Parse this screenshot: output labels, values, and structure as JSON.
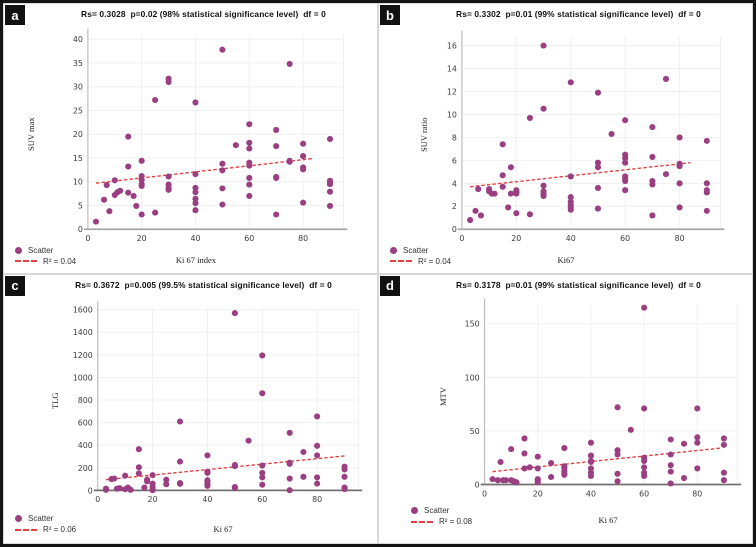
{
  "figure": {
    "point_color": "#9a3f82",
    "trend_color": "#e24141",
    "grid_color": "#f0f0f0",
    "yaxis_color": "#bdbdbd",
    "badge_bg": "#111111",
    "badge_text_color": "#ffffff",
    "border_color": "#141414"
  },
  "chart_data": [
    {
      "type": "scatter",
      "panel": "a",
      "title": "Rs= 0.3028  p=0.02 (98% statistical significance level)  df = 0",
      "xlabel": "Ki 67 index",
      "ylabel": "SUV max",
      "legend": {
        "scatter": "Scatter",
        "r2": "R² = 0.04"
      },
      "xlim": [
        0,
        95
      ],
      "ylim": [
        0,
        41
      ],
      "xticks": [
        0,
        20,
        40,
        60,
        80
      ],
      "yticks": [
        0,
        5,
        10,
        15,
        20,
        25,
        30,
        35,
        40
      ],
      "grid": true,
      "legend_position": "bottom-left",
      "trend": {
        "x1": 3,
        "y1": 9.7,
        "x2": 84,
        "y2": 14.9
      },
      "points": [
        [
          3,
          1.6
        ],
        [
          6,
          6.2
        ],
        [
          7,
          9.3
        ],
        [
          8,
          3.8
        ],
        [
          10,
          7.2
        ],
        [
          10,
          10.3
        ],
        [
          11,
          7.8
        ],
        [
          12,
          8.1
        ],
        [
          15,
          19.5
        ],
        [
          15,
          13.2
        ],
        [
          15,
          7.7
        ],
        [
          17,
          7.0
        ],
        [
          18,
          4.9
        ],
        [
          20,
          14.4
        ],
        [
          20,
          11.2
        ],
        [
          20,
          10.4
        ],
        [
          20,
          9.5
        ],
        [
          20,
          9.1
        ],
        [
          20,
          3.1
        ],
        [
          25,
          27.2
        ],
        [
          25,
          3.5
        ],
        [
          30,
          31.7
        ],
        [
          30,
          31.0
        ],
        [
          30,
          11.1
        ],
        [
          30,
          9.4
        ],
        [
          30,
          8.7
        ],
        [
          30,
          8.3
        ],
        [
          40,
          26.7
        ],
        [
          40,
          11.6
        ],
        [
          40,
          8.7
        ],
        [
          40,
          7.8
        ],
        [
          40,
          6.4
        ],
        [
          40,
          5.5
        ],
        [
          40,
          4.0
        ],
        [
          50,
          37.8
        ],
        [
          50,
          13.8
        ],
        [
          50,
          12.4
        ],
        [
          50,
          8.6
        ],
        [
          50,
          5.2
        ],
        [
          55,
          17.7
        ],
        [
          60,
          22.1
        ],
        [
          60,
          18.2
        ],
        [
          60,
          17.0
        ],
        [
          60,
          14.0
        ],
        [
          60,
          13.4
        ],
        [
          60,
          10.8
        ],
        [
          60,
          9.4
        ],
        [
          60,
          7.0
        ],
        [
          70,
          20.9
        ],
        [
          70,
          17.5
        ],
        [
          70,
          11.0
        ],
        [
          70,
          10.8
        ],
        [
          70,
          3.1
        ],
        [
          75,
          34.8
        ],
        [
          75,
          14.4
        ],
        [
          75,
          14.2
        ],
        [
          80,
          18.0
        ],
        [
          80,
          15.4
        ],
        [
          80,
          13.0
        ],
        [
          80,
          12.6
        ],
        [
          80,
          5.6
        ],
        [
          90,
          19.0
        ],
        [
          90,
          10.2
        ],
        [
          90,
          9.8
        ],
        [
          90,
          9.5
        ],
        [
          90,
          7.9
        ],
        [
          90,
          4.9
        ]
      ]
    },
    {
      "type": "scatter",
      "panel": "b",
      "title": "Rs= 0.3302  p=0.01 (99% statistical significance level)  df = 0",
      "xlabel": "Ki67",
      "ylabel": "SUV ratio",
      "legend": {
        "scatter": "Scatter",
        "r2": "R² = 0.04"
      },
      "xlim": [
        0,
        95
      ],
      "ylim": [
        0,
        16.8
      ],
      "xticks": [
        0,
        20,
        40,
        60,
        80
      ],
      "yticks": [
        0,
        2,
        4,
        6,
        8,
        10,
        12,
        14,
        16
      ],
      "grid": true,
      "legend_position": "bottom-left",
      "trend": {
        "x1": 3,
        "y1": 3.7,
        "x2": 84,
        "y2": 5.8
      },
      "points": [
        [
          3,
          0.8
        ],
        [
          5,
          1.6
        ],
        [
          6,
          3.5
        ],
        [
          7,
          1.2
        ],
        [
          10,
          3.5
        ],
        [
          10,
          3.3
        ],
        [
          11,
          3.1
        ],
        [
          12,
          3.1
        ],
        [
          15,
          7.4
        ],
        [
          15,
          4.7
        ],
        [
          15,
          3.7
        ],
        [
          17,
          1.9
        ],
        [
          18,
          5.4
        ],
        [
          18,
          3.1
        ],
        [
          20,
          3.4
        ],
        [
          20,
          3.3
        ],
        [
          20,
          3.2
        ],
        [
          20,
          3.1
        ],
        [
          20,
          1.4
        ],
        [
          25,
          9.7
        ],
        [
          25,
          1.3
        ],
        [
          30,
          16
        ],
        [
          30,
          10.5
        ],
        [
          30,
          3.8
        ],
        [
          30,
          3.3
        ],
        [
          30,
          3.1
        ],
        [
          30,
          2.9
        ],
        [
          40,
          12.8
        ],
        [
          40,
          4.6
        ],
        [
          40,
          2.8
        ],
        [
          40,
          2.4
        ],
        [
          40,
          2.1
        ],
        [
          40,
          1.9
        ],
        [
          40,
          1.7
        ],
        [
          50,
          11.9
        ],
        [
          50,
          5.8
        ],
        [
          50,
          5.4
        ],
        [
          50,
          3.6
        ],
        [
          50,
          1.8
        ],
        [
          55,
          8.3
        ],
        [
          60,
          9.5
        ],
        [
          60,
          6.5
        ],
        [
          60,
          6.2
        ],
        [
          60,
          5.8
        ],
        [
          60,
          4.6
        ],
        [
          60,
          4.4
        ],
        [
          60,
          4.2
        ],
        [
          60,
          3.4
        ],
        [
          70,
          8.9
        ],
        [
          70,
          6.3
        ],
        [
          70,
          4.2
        ],
        [
          70,
          3.9
        ],
        [
          70,
          1.2
        ],
        [
          75,
          13.1
        ],
        [
          75,
          4.8
        ],
        [
          80,
          8
        ],
        [
          80,
          5.7
        ],
        [
          80,
          5.5
        ],
        [
          80,
          4
        ],
        [
          80,
          1.9
        ],
        [
          90,
          7.7
        ],
        [
          90,
          4
        ],
        [
          90,
          3.4
        ],
        [
          90,
          3.2
        ],
        [
          90,
          1.6
        ]
      ]
    },
    {
      "type": "scatter",
      "panel": "c",
      "title": "Rs= 0.3672  p=0.005 (99.5% statistical significance level)  df = 0",
      "xlabel": "Ki 67",
      "ylabel": "TLG",
      "legend": {
        "scatter": "Scatter",
        "r2": "R² = 0.06"
      },
      "xlim": [
        0,
        95
      ],
      "ylim": [
        0,
        1620
      ],
      "xticks": [
        0,
        20,
        40,
        60,
        80
      ],
      "yticks": [
        0,
        200,
        400,
        600,
        800,
        1000,
        1200,
        1400,
        1600
      ],
      "grid": true,
      "legend_position": "bottom-left",
      "trend": {
        "x1": 3,
        "y1": 95,
        "x2": 90,
        "y2": 305
      },
      "points": [
        [
          3,
          5
        ],
        [
          3,
          15
        ],
        [
          5,
          100
        ],
        [
          6,
          105
        ],
        [
          7,
          15
        ],
        [
          8,
          20
        ],
        [
          10,
          130
        ],
        [
          10,
          10
        ],
        [
          11,
          25
        ],
        [
          12,
          5
        ],
        [
          15,
          365
        ],
        [
          15,
          205
        ],
        [
          15,
          150
        ],
        [
          17,
          25
        ],
        [
          18,
          95
        ],
        [
          18,
          80
        ],
        [
          20,
          135
        ],
        [
          20,
          60
        ],
        [
          20,
          30
        ],
        [
          20,
          10
        ],
        [
          20,
          2
        ],
        [
          25,
          95
        ],
        [
          25,
          55
        ],
        [
          30,
          610
        ],
        [
          30,
          255
        ],
        [
          30,
          65
        ],
        [
          30,
          58
        ],
        [
          40,
          310
        ],
        [
          40,
          165
        ],
        [
          40,
          155
        ],
        [
          40,
          90
        ],
        [
          40,
          75
        ],
        [
          40,
          55
        ],
        [
          40,
          40
        ],
        [
          50,
          1570
        ],
        [
          50,
          225
        ],
        [
          50,
          215
        ],
        [
          50,
          30
        ],
        [
          50,
          22
        ],
        [
          55,
          440
        ],
        [
          60,
          1195
        ],
        [
          60,
          860
        ],
        [
          60,
          220
        ],
        [
          60,
          155
        ],
        [
          60,
          115
        ],
        [
          60,
          50
        ],
        [
          70,
          510
        ],
        [
          70,
          245
        ],
        [
          70,
          235
        ],
        [
          70,
          105
        ],
        [
          70,
          2
        ],
        [
          75,
          340
        ],
        [
          75,
          120
        ],
        [
          80,
          655
        ],
        [
          80,
          395
        ],
        [
          80,
          310
        ],
        [
          80,
          115
        ],
        [
          80,
          60
        ],
        [
          90,
          210
        ],
        [
          90,
          185
        ],
        [
          90,
          120
        ],
        [
          90,
          25
        ],
        [
          90,
          12
        ]
      ]
    },
    {
      "type": "scatter",
      "panel": "d",
      "title": "Rs= 0.3178  p=0.01 (99% statistical significance level)  df = 0",
      "xlabel": "Ki 67",
      "ylabel": "MTV",
      "legend": {
        "scatter": "Scatter",
        "r2": "R² = 0.08"
      },
      "xlim": [
        0,
        95
      ],
      "ylim": [
        0,
        168
      ],
      "xticks": [
        0,
        20,
        40,
        60,
        80
      ],
      "yticks": [
        0,
        50,
        100,
        150
      ],
      "grid": true,
      "legend_position": "bottom-left",
      "trend": {
        "x1": 3,
        "y1": 12,
        "x2": 89,
        "y2": 34
      },
      "points": [
        [
          3,
          5
        ],
        [
          5,
          4
        ],
        [
          6,
          21
        ],
        [
          7,
          4
        ],
        [
          8,
          4
        ],
        [
          10,
          33
        ],
        [
          10,
          4
        ],
        [
          11,
          3
        ],
        [
          12,
          2
        ],
        [
          15,
          43
        ],
        [
          15,
          29
        ],
        [
          15,
          15
        ],
        [
          17,
          16
        ],
        [
          20,
          26
        ],
        [
          20,
          15
        ],
        [
          20,
          5
        ],
        [
          20,
          4
        ],
        [
          20,
          2
        ],
        [
          25,
          20
        ],
        [
          25,
          7
        ],
        [
          30,
          34
        ],
        [
          30,
          17
        ],
        [
          30,
          15
        ],
        [
          30,
          12
        ],
        [
          30,
          10
        ],
        [
          30,
          9
        ],
        [
          40,
          39
        ],
        [
          40,
          27
        ],
        [
          40,
          22
        ],
        [
          40,
          21
        ],
        [
          40,
          15
        ],
        [
          40,
          11
        ],
        [
          40,
          8
        ],
        [
          50,
          72
        ],
        [
          50,
          32
        ],
        [
          50,
          28
        ],
        [
          50,
          10
        ],
        [
          50,
          3
        ],
        [
          55,
          51
        ],
        [
          60,
          165
        ],
        [
          60,
          71
        ],
        [
          60,
          25
        ],
        [
          60,
          22
        ],
        [
          60,
          16
        ],
        [
          60,
          11
        ],
        [
          60,
          8
        ],
        [
          70,
          42
        ],
        [
          70,
          28
        ],
        [
          70,
          18
        ],
        [
          70,
          12
        ],
        [
          70,
          1
        ],
        [
          75,
          38
        ],
        [
          75,
          6
        ],
        [
          80,
          71
        ],
        [
          80,
          44
        ],
        [
          80,
          39
        ],
        [
          80,
          15
        ],
        [
          90,
          43
        ],
        [
          90,
          37
        ],
        [
          90,
          11
        ],
        [
          90,
          4
        ]
      ]
    }
  ]
}
